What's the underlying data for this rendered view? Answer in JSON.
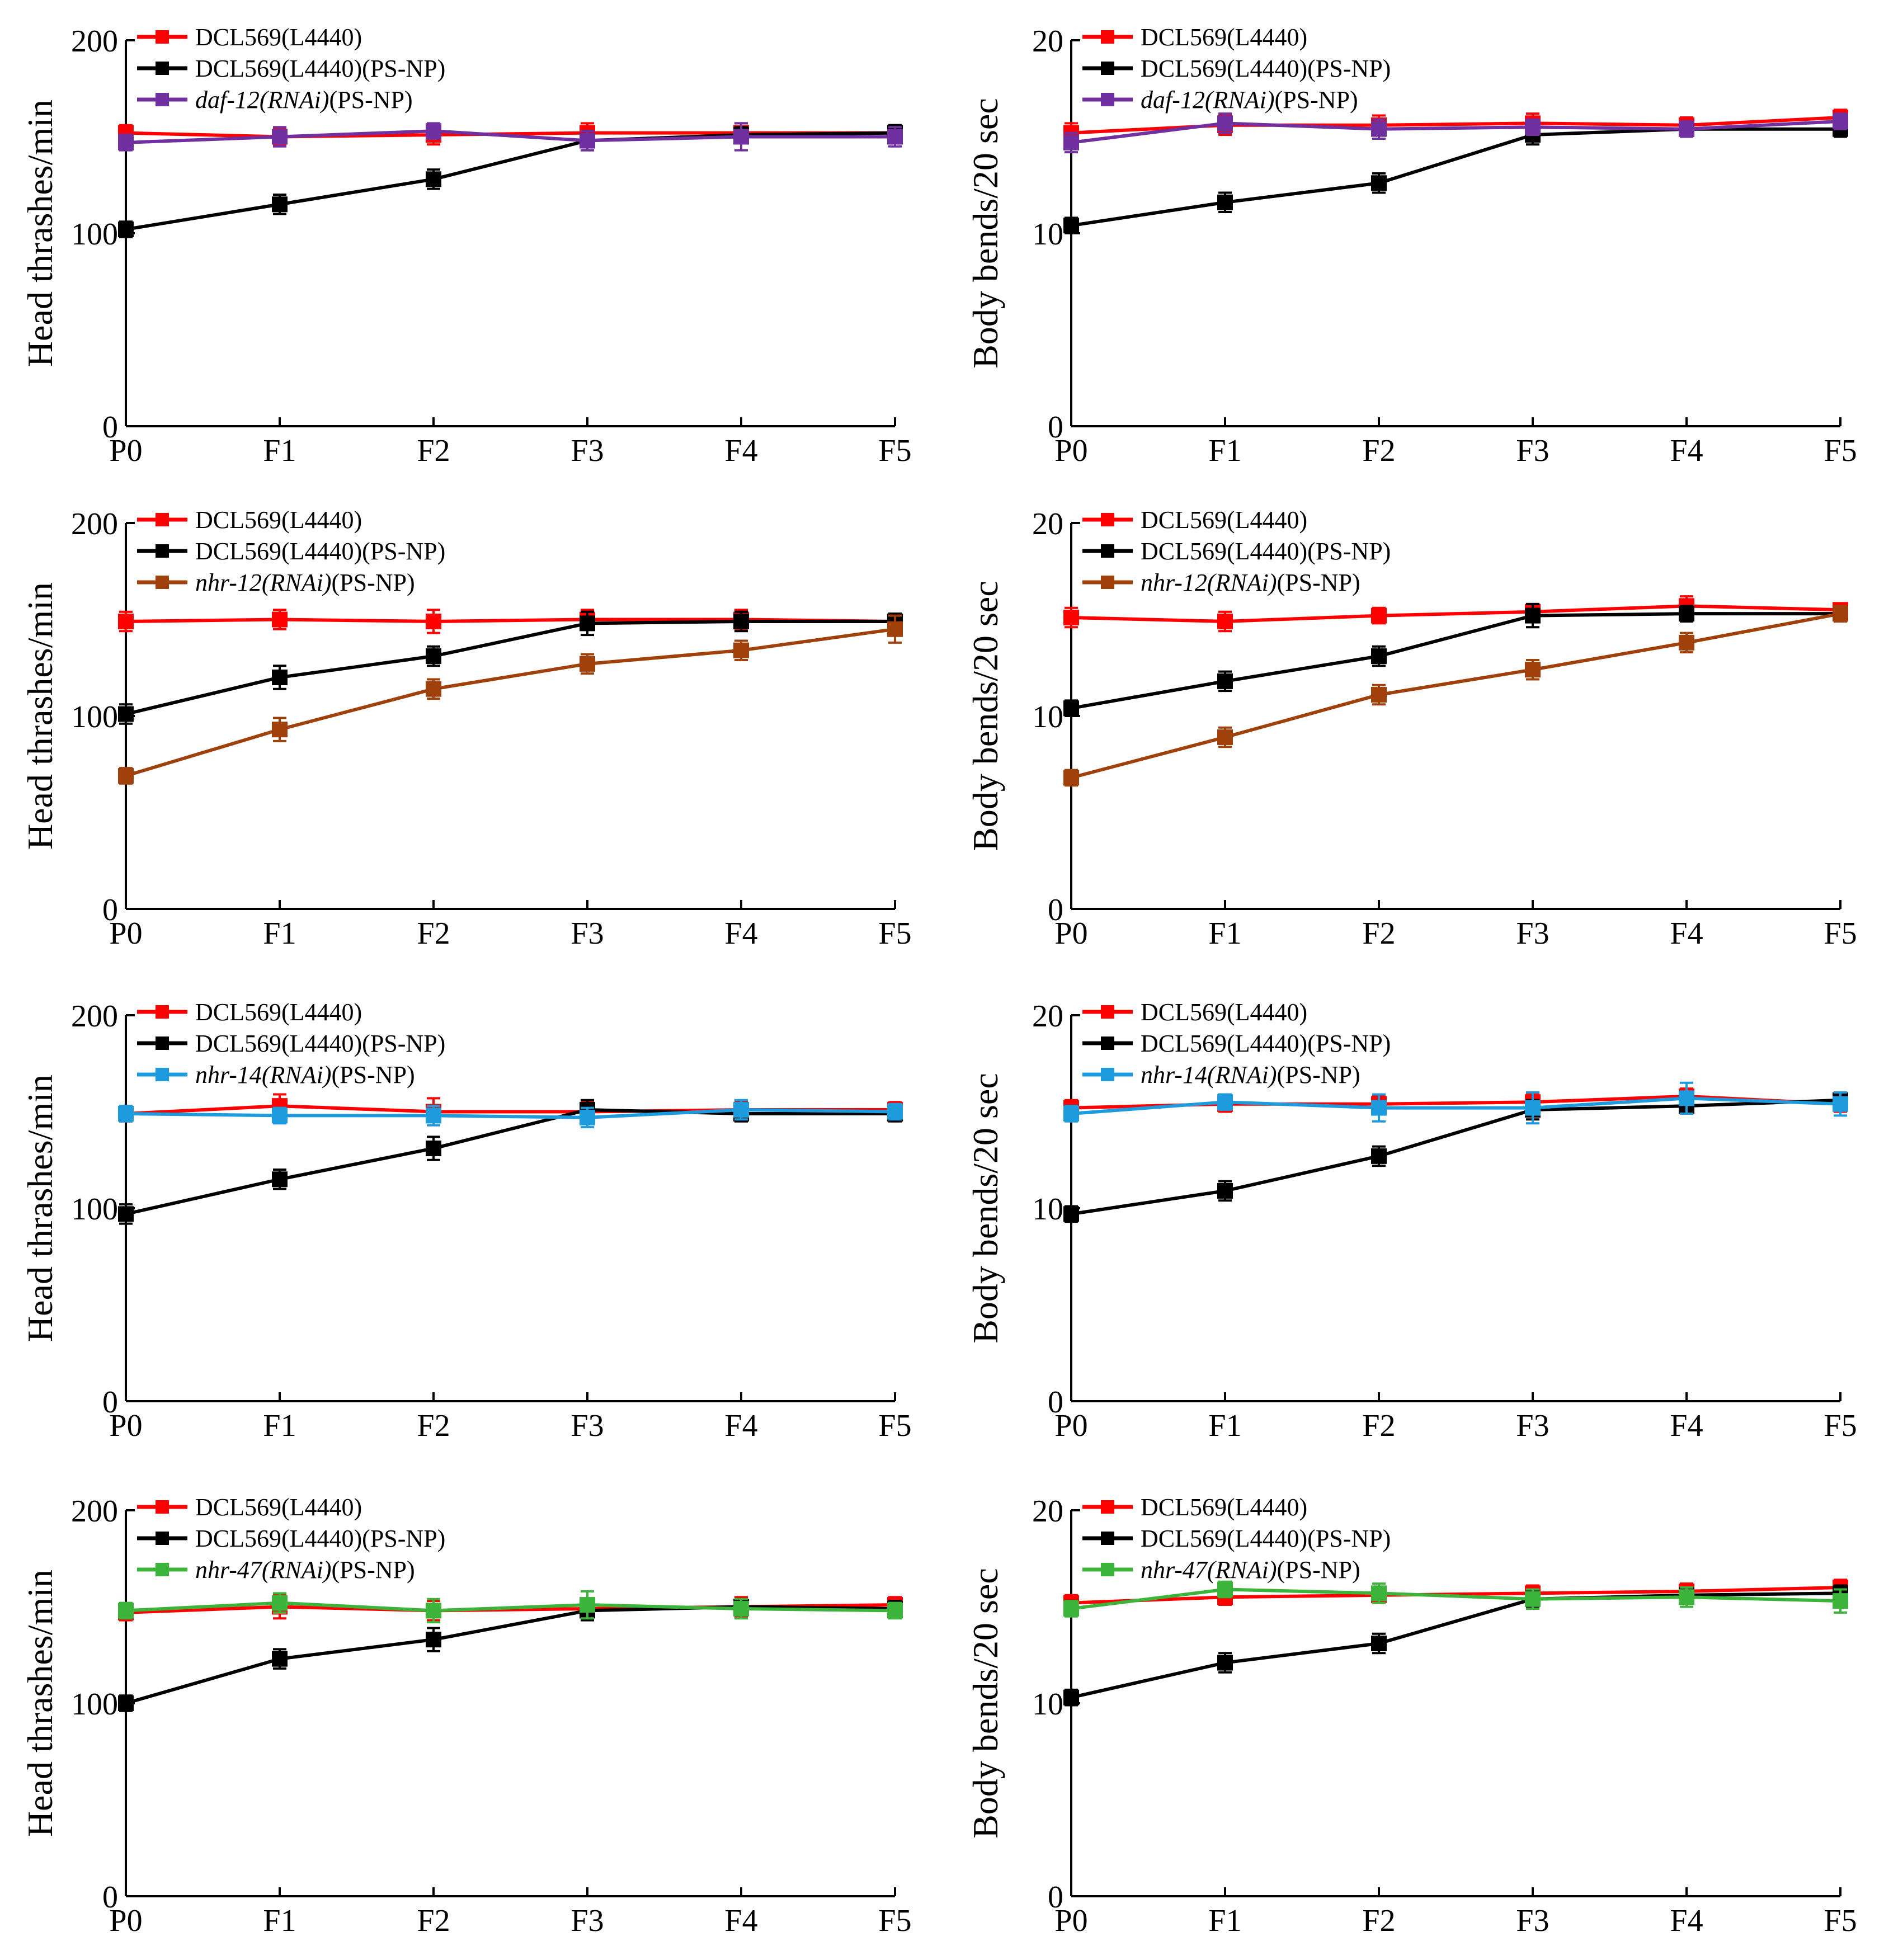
{
  "chart_data": [
    {
      "type": "line",
      "ylabel": "Head thrashes/min",
      "categories": [
        "P0",
        "F1",
        "F2",
        "F3",
        "F4",
        "F5"
      ],
      "ylim": [
        0,
        200
      ],
      "yticks": [
        0,
        100,
        200
      ],
      "legend_position": "top-left",
      "series": [
        {
          "name": "DCL569(L4440)",
          "name_italic": "",
          "name_suffix": "",
          "color": "#FF0000",
          "values": [
            152,
            150,
            151,
            152,
            152,
            152
          ],
          "errors": [
            4,
            4,
            5,
            5,
            5,
            4
          ]
        },
        {
          "name": "DCL569(L4440)(PS-NP)",
          "name_italic": "",
          "name_suffix": "",
          "color": "#000000",
          "values": [
            102,
            115,
            128,
            148,
            151,
            152
          ],
          "errors": [
            4,
            5,
            5,
            5,
            4,
            4
          ]
        },
        {
          "name": "daf-12(RNAi)(PS-NP)",
          "name_italic": "daf-12(RNAi)",
          "name_suffix": "(PS-NP)",
          "color": "#7030A0",
          "values": [
            147,
            150,
            153,
            148,
            150,
            150
          ],
          "errors": [
            4,
            5,
            4,
            5,
            7,
            5
          ]
        }
      ]
    },
    {
      "type": "line",
      "ylabel": "Body bends/20 sec",
      "categories": [
        "P0",
        "F1",
        "F2",
        "F3",
        "F4",
        "F5"
      ],
      "ylim": [
        0,
        20
      ],
      "yticks": [
        0,
        10,
        20
      ],
      "legend_position": "top-left",
      "series": [
        {
          "name": "DCL569(L4440)",
          "name_italic": "",
          "name_suffix": "",
          "color": "#FF0000",
          "values": [
            15.2,
            15.6,
            15.6,
            15.7,
            15.6,
            16.0
          ],
          "errors": [
            0.5,
            0.5,
            0.5,
            0.5,
            0.4,
            0.4
          ]
        },
        {
          "name": "DCL569(L4440)(PS-NP)",
          "name_italic": "",
          "name_suffix": "",
          "color": "#000000",
          "values": [
            10.4,
            11.6,
            12.6,
            15.1,
            15.4,
            15.4
          ],
          "errors": [
            0.4,
            0.5,
            0.5,
            0.5,
            0.4,
            0.4
          ]
        },
        {
          "name": "daf-12(RNAi)(PS-NP)",
          "name_italic": "daf-12(RNAi)",
          "name_suffix": "(PS-NP)",
          "color": "#7030A0",
          "values": [
            14.7,
            15.7,
            15.4,
            15.5,
            15.4,
            15.8
          ],
          "errors": [
            0.5,
            0.5,
            0.5,
            0.4,
            0.4,
            0.4
          ]
        }
      ]
    },
    {
      "type": "line",
      "ylabel": "Head thrashes/min",
      "categories": [
        "P0",
        "F1",
        "F2",
        "F3",
        "F4",
        "F5"
      ],
      "ylim": [
        0,
        200
      ],
      "yticks": [
        0,
        100,
        200
      ],
      "legend_position": "top-left",
      "series": [
        {
          "name": "DCL569(L4440)",
          "name_italic": "",
          "name_suffix": "",
          "color": "#FF0000",
          "values": [
            149,
            150,
            149,
            150,
            150,
            149
          ],
          "errors": [
            5,
            5,
            6,
            5,
            5,
            4
          ]
        },
        {
          "name": "DCL569(L4440)(PS-NP)",
          "name_italic": "",
          "name_suffix": "",
          "color": "#000000",
          "values": [
            101,
            120,
            131,
            148,
            149,
            149
          ],
          "errors": [
            5,
            6,
            5,
            6,
            5,
            4
          ]
        },
        {
          "name": "nhr-12(RNAi)(PS-NP)",
          "name_italic": "nhr-12(RNAi)",
          "name_suffix": "(PS-NP)",
          "color": "#A0400A",
          "values": [
            69,
            93,
            114,
            127,
            134,
            145
          ],
          "errors": [
            4,
            6,
            5,
            5,
            5,
            7
          ]
        }
      ]
    },
    {
      "type": "line",
      "ylabel": "Body bends/20 sec",
      "categories": [
        "P0",
        "F1",
        "F2",
        "F3",
        "F4",
        "F5"
      ],
      "ylim": [
        0,
        20
      ],
      "yticks": [
        0,
        10,
        20
      ],
      "legend_position": "top-left",
      "series": [
        {
          "name": "DCL569(L4440)",
          "name_italic": "",
          "name_suffix": "",
          "color": "#FF0000",
          "values": [
            15.1,
            14.9,
            15.2,
            15.4,
            15.7,
            15.5
          ],
          "errors": [
            0.5,
            0.5,
            0.4,
            0.4,
            0.5,
            0.3
          ]
        },
        {
          "name": "DCL569(L4440)(PS-NP)",
          "name_italic": "",
          "name_suffix": "",
          "color": "#000000",
          "values": [
            10.4,
            11.8,
            13.1,
            15.2,
            15.3,
            15.3
          ],
          "errors": [
            0.4,
            0.5,
            0.5,
            0.6,
            0.4,
            0.3
          ]
        },
        {
          "name": "nhr-12(RNAi)(PS-NP)",
          "name_italic": "nhr-12(RNAi)",
          "name_suffix": "(PS-NP)",
          "color": "#A0400A",
          "values": [
            6.8,
            8.9,
            11.1,
            12.4,
            13.8,
            15.3
          ],
          "errors": [
            0.4,
            0.5,
            0.5,
            0.5,
            0.5,
            0.4
          ]
        }
      ]
    },
    {
      "type": "line",
      "ylabel": "Head thrashes/min",
      "categories": [
        "P0",
        "F1",
        "F2",
        "F3",
        "F4",
        "F5"
      ],
      "ylim": [
        0,
        200
      ],
      "yticks": [
        0,
        100,
        200
      ],
      "legend_position": "top-left",
      "series": [
        {
          "name": "DCL569(L4440)",
          "name_italic": "",
          "name_suffix": "",
          "color": "#FF0000",
          "values": [
            149,
            153,
            150,
            150,
            151,
            151
          ],
          "errors": [
            4,
            6,
            7,
            5,
            4,
            4
          ]
        },
        {
          "name": "DCL569(L4440)(PS-NP)",
          "name_italic": "",
          "name_suffix": "",
          "color": "#000000",
          "values": [
            97,
            115,
            131,
            151,
            149,
            149
          ],
          "errors": [
            5,
            5,
            6,
            5,
            4,
            4
          ]
        },
        {
          "name": "nhr-14(RNAi)(PS-NP)",
          "name_italic": "nhr-14(RNAi)",
          "name_suffix": "(PS-NP)",
          "color": "#1E9BDC",
          "values": [
            149,
            148,
            148,
            147,
            151,
            150
          ],
          "errors": [
            4,
            4,
            5,
            5,
            5,
            4
          ]
        }
      ]
    },
    {
      "type": "line",
      "ylabel": "Body bends/20 sec",
      "categories": [
        "P0",
        "F1",
        "F2",
        "F3",
        "F4",
        "F5"
      ],
      "ylim": [
        0,
        20
      ],
      "yticks": [
        0,
        10,
        20
      ],
      "legend_position": "top-left",
      "series": [
        {
          "name": "DCL569(L4440)",
          "name_italic": "",
          "name_suffix": "",
          "color": "#FF0000",
          "values": [
            15.2,
            15.4,
            15.4,
            15.5,
            15.8,
            15.4
          ],
          "errors": [
            0.4,
            0.4,
            0.4,
            0.4,
            0.4,
            0.4
          ]
        },
        {
          "name": "DCL569(L4440)(PS-NP)",
          "name_italic": "",
          "name_suffix": "",
          "color": "#000000",
          "values": [
            9.7,
            10.9,
            12.7,
            15.1,
            15.3,
            15.6
          ],
          "errors": [
            0.4,
            0.5,
            0.5,
            0.5,
            0.4,
            0.4
          ]
        },
        {
          "name": "nhr-14(RNAi)(PS-NP)",
          "name_italic": "nhr-14(RNAi)",
          "name_suffix": "(PS-NP)",
          "color": "#1E9BDC",
          "values": [
            14.9,
            15.5,
            15.2,
            15.2,
            15.7,
            15.4
          ],
          "errors": [
            0.4,
            0.4,
            0.7,
            0.8,
            0.8,
            0.6
          ]
        }
      ]
    },
    {
      "type": "line",
      "ylabel": "Head thrashes/min",
      "categories": [
        "P0",
        "F1",
        "F2",
        "F3",
        "F4",
        "F5"
      ],
      "ylim": [
        0,
        200
      ],
      "yticks": [
        0,
        100,
        200
      ],
      "legend_position": "top-left",
      "series": [
        {
          "name": "DCL569(L4440)",
          "name_italic": "",
          "name_suffix": "",
          "color": "#FF0000",
          "values": [
            147,
            150,
            148,
            149,
            150,
            151
          ],
          "errors": [
            4,
            6,
            5,
            5,
            5,
            4
          ]
        },
        {
          "name": "DCL569(L4440)(PS-NP)",
          "name_italic": "",
          "name_suffix": "",
          "color": "#000000",
          "values": [
            100,
            123,
            133,
            148,
            150,
            149
          ],
          "errors": [
            4,
            5,
            6,
            5,
            4,
            4
          ]
        },
        {
          "name": "nhr-47(RNAi)(PS-NP)",
          "name_italic": "nhr-47(RNAi)",
          "name_suffix": "(PS-NP)",
          "color": "#3CB43C",
          "values": [
            148,
            152,
            148,
            151,
            149,
            148
          ],
          "errors": [
            4,
            5,
            6,
            7,
            5,
            4
          ]
        }
      ]
    },
    {
      "type": "line",
      "ylabel": "Body bends/20 sec",
      "categories": [
        "P0",
        "F1",
        "F2",
        "F3",
        "F4",
        "F5"
      ],
      "ylim": [
        0,
        20
      ],
      "yticks": [
        0,
        10,
        20
      ],
      "legend_position": "top-left",
      "series": [
        {
          "name": "DCL569(L4440)",
          "name_italic": "",
          "name_suffix": "",
          "color": "#FF0000",
          "values": [
            15.2,
            15.5,
            15.6,
            15.7,
            15.8,
            16.0
          ],
          "errors": [
            0.4,
            0.4,
            0.4,
            0.4,
            0.4,
            0.4
          ]
        },
        {
          "name": "DCL569(L4440)(PS-NP)",
          "name_italic": "",
          "name_suffix": "",
          "color": "#000000",
          "values": [
            10.3,
            12.1,
            13.1,
            15.4,
            15.6,
            15.7
          ],
          "errors": [
            0.4,
            0.5,
            0.5,
            0.4,
            0.4,
            0.4
          ]
        },
        {
          "name": "nhr-47(RNAi)(PS-NP)",
          "name_italic": "nhr-47(RNAi)",
          "name_suffix": "(PS-NP)",
          "color": "#3CB43C",
          "values": [
            14.9,
            15.9,
            15.7,
            15.4,
            15.5,
            15.3
          ],
          "errors": [
            0.4,
            0.4,
            0.5,
            0.5,
            0.5,
            0.6
          ]
        }
      ]
    }
  ]
}
